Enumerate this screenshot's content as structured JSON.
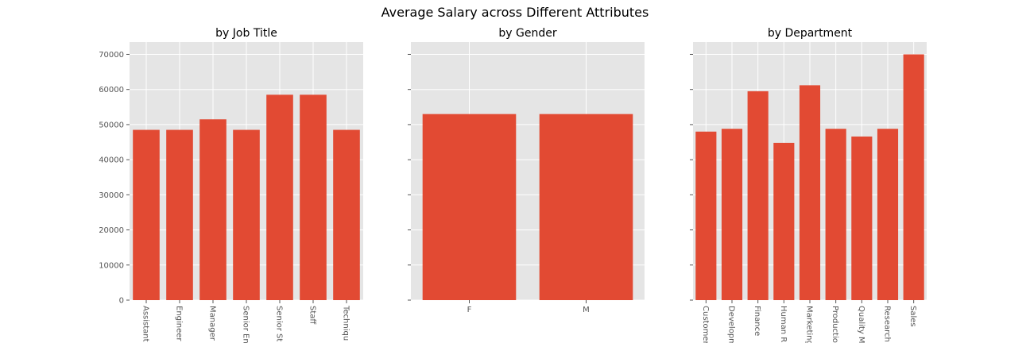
{
  "figure_title": "Average Salary across Different Attributes",
  "colors": {
    "bar": "#E24A33",
    "plot_bg": "#E5E5E5",
    "grid": "#FFFFFF",
    "tick_text": "#555555"
  },
  "chart_data": [
    {
      "type": "bar",
      "title": "by Job Title",
      "categories": [
        "Assistant",
        "Engineer",
        "Manager",
        "Senior En",
        "Senior St",
        "Staff",
        "Techniqu"
      ],
      "values": [
        48500,
        48500,
        51500,
        48500,
        58500,
        58500,
        48500
      ],
      "ylim": [
        0,
        73500
      ],
      "yticks": [
        0,
        10000,
        20000,
        30000,
        40000,
        50000,
        60000,
        70000
      ],
      "grid": true,
      "xtick_rotation": 270
    },
    {
      "type": "bar",
      "title": "by Gender",
      "categories": [
        "F",
        "M"
      ],
      "values": [
        53000,
        53000
      ],
      "ylim": [
        0,
        73500
      ],
      "yticks": [
        0,
        10000,
        20000,
        30000,
        40000,
        50000,
        60000,
        70000
      ],
      "grid": true,
      "xtick_rotation": 0
    },
    {
      "type": "bar",
      "title": "by Department",
      "categories": [
        "Customer",
        "Developm",
        "Finance",
        "Human R",
        "Marketing",
        "Productio",
        "Quality M",
        "Research",
        "Sales"
      ],
      "values": [
        48000,
        48800,
        59500,
        44800,
        61200,
        48800,
        46600,
        48800,
        70000
      ],
      "ylim": [
        0,
        73500
      ],
      "yticks": [
        0,
        10000,
        20000,
        30000,
        40000,
        50000,
        60000,
        70000
      ],
      "grid": true,
      "xtick_rotation": 270
    }
  ]
}
